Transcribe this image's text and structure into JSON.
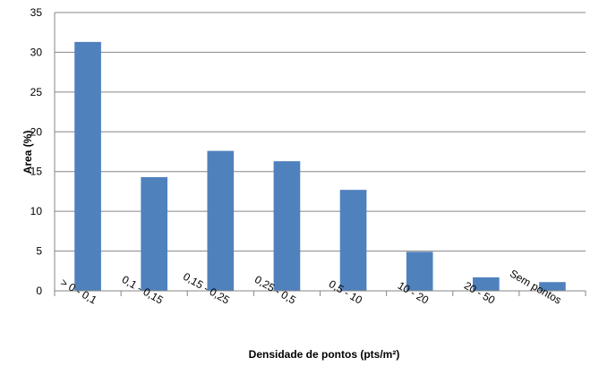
{
  "chart_data": {
    "type": "bar",
    "title": "",
    "xlabel": "Densidade de pontos (pts/m²)",
    "ylabel": "Area (%)",
    "categories": [
      "> 0 - 0,1",
      "0,1 - 0,15",
      "0,15 - 0,25",
      "0,25 - 0,5",
      "0,5 - 10",
      "10 - 20",
      "20 - 50",
      "Sem pontos"
    ],
    "values": [
      31.3,
      14.3,
      17.6,
      16.3,
      12.7,
      4.9,
      1.7,
      1.1
    ],
    "ylim": [
      0,
      35
    ],
    "yticks": [
      0,
      5,
      10,
      15,
      20,
      25,
      30,
      35
    ],
    "grid": true,
    "legend": "none",
    "colors": {
      "bar": "#4f81bd",
      "grid": "#868686",
      "axis": "#868686"
    }
  }
}
